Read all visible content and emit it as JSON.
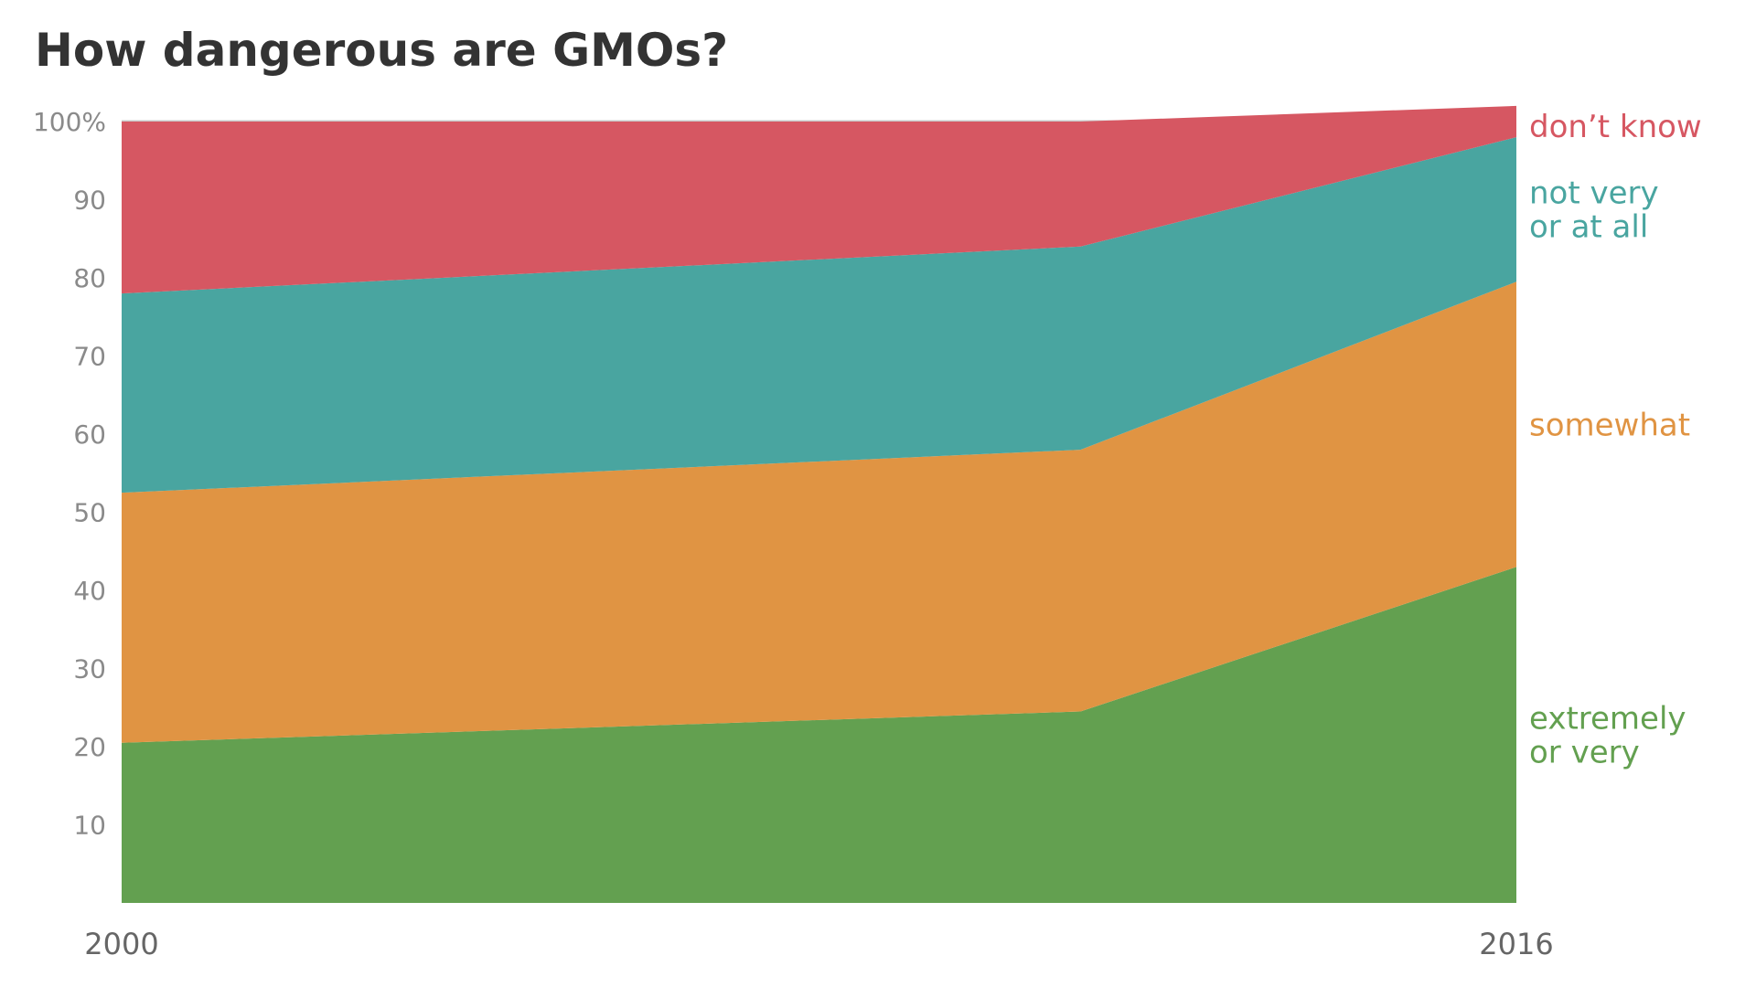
{
  "chart_data": {
    "type": "area",
    "stacked": true,
    "title": "How dangerous are GMOs?",
    "xlabel": "",
    "ylabel": "",
    "x": [
      2000,
      2011,
      2016
    ],
    "x_tick_labels": [
      "2000",
      "2016"
    ],
    "y_ticks": [
      10,
      20,
      30,
      40,
      50,
      60,
      70,
      80,
      90,
      100
    ],
    "y_tick_labels": [
      "10",
      "20",
      "30",
      "40",
      "50",
      "60",
      "70",
      "80",
      "90",
      "100%"
    ],
    "ylim": [
      0,
      100
    ],
    "grid": false,
    "legend": "direct labels at right",
    "series": [
      {
        "name": "extremely or very",
        "label_lines": [
          "extremely",
          "or very"
        ],
        "color": "#63a050",
        "values": [
          20.5,
          24.5,
          43
        ]
      },
      {
        "name": "somewhat",
        "label_lines": [
          "somewhat"
        ],
        "color": "#e09443",
        "values": [
          32,
          33.5,
          36.5
        ]
      },
      {
        "name": "not very or at all",
        "label_lines": [
          "not very",
          "or at all"
        ],
        "color": "#49a5a0",
        "values": [
          25.5,
          26,
          18.5
        ]
      },
      {
        "name": "don't know",
        "label_lines": [
          "don’t know"
        ],
        "color": "#d65762",
        "values": [
          22,
          16,
          4
        ]
      }
    ]
  }
}
